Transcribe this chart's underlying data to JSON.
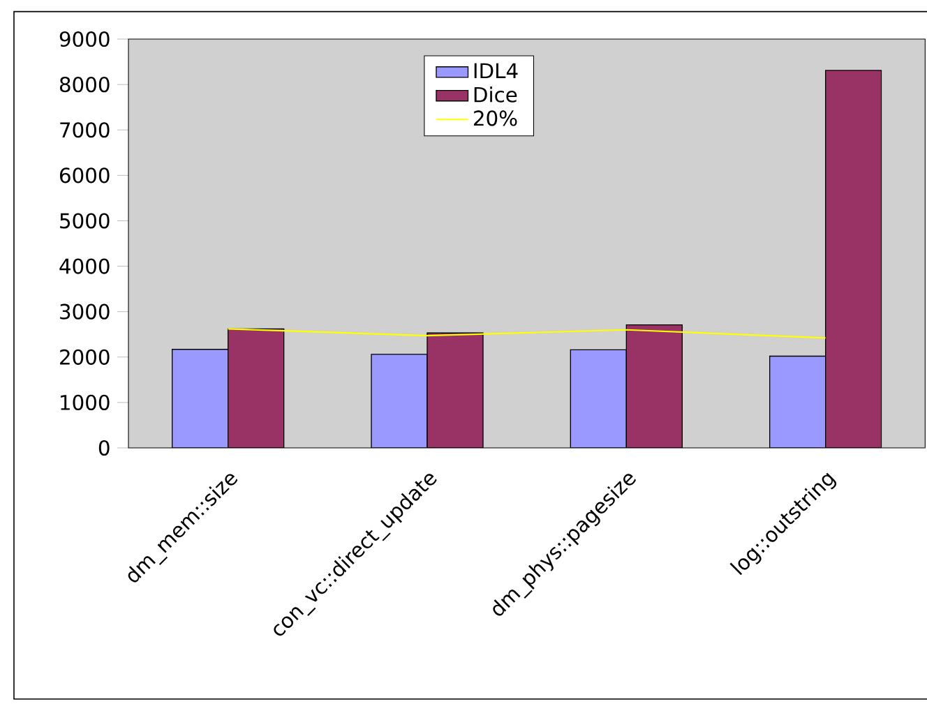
{
  "chart_data": {
    "type": "bar",
    "categories": [
      "dm_mem::size",
      "con_vc::direct_update",
      "dm_phys::pagesize",
      "log::outstring"
    ],
    "series": [
      {
        "name": "IDL4",
        "color": "#9999ff",
        "values": [
          2170,
          2060,
          2160,
          2020
        ]
      },
      {
        "name": "Dice",
        "color": "#993366",
        "values": [
          2620,
          2530,
          2710,
          8310
        ]
      },
      {
        "name": "20%",
        "type": "line",
        "color": "#ffff00",
        "values": [
          2620,
          2470,
          2600,
          2420
        ]
      }
    ],
    "ylim": [
      0,
      9000
    ],
    "yticks": [
      0,
      1000,
      2000,
      3000,
      4000,
      5000,
      6000,
      7000,
      8000,
      9000
    ],
    "legend": "top",
    "marker": "none"
  }
}
